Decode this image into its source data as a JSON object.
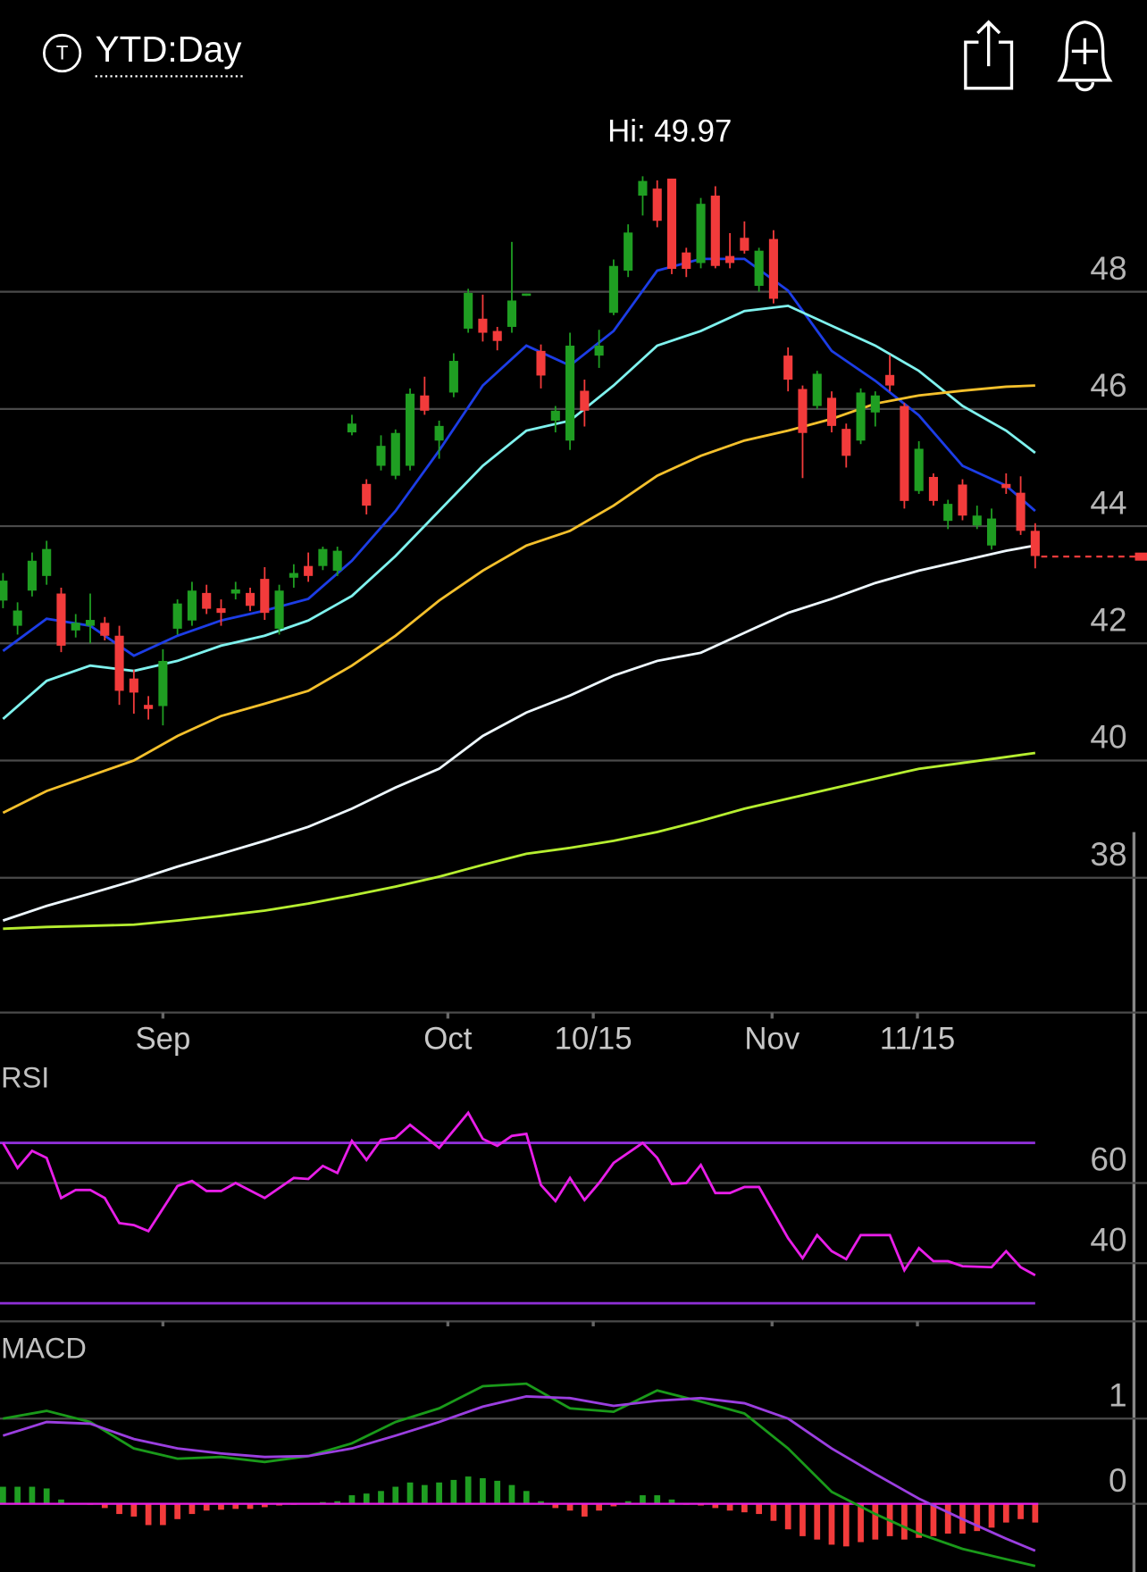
{
  "header": {
    "icon_letter": "T",
    "title": "YTD:Day"
  },
  "chart_data": [
    {
      "type": "candlestick",
      "annotation": "Hi: 49.97",
      "open": [
        42.73,
        42.3,
        42.9,
        43.15,
        42.85,
        42.22,
        42.3,
        42.35,
        42.13,
        41.4,
        40.95,
        40.93,
        42.25,
        42.39,
        42.86,
        42.6,
        42.85,
        42.86,
        43.1,
        42.25,
        43.12,
        43.32,
        43.32,
        43.24,
        45.6,
        44.72,
        45.03,
        44.86,
        45.03,
        46.23,
        45.46,
        46.28,
        47.37,
        47.54,
        47.33,
        47.4,
        47.93,
        46.99,
        45.8,
        45.46,
        46.31,
        46.91,
        47.64,
        48.36,
        49.64,
        49.76,
        49.93,
        48.67,
        48.49,
        49.64,
        48.61,
        48.92,
        48.1,
        48.9,
        46.91,
        46.34,
        46.05,
        46.19,
        45.66,
        45.46,
        45.94,
        46.58,
        46.05,
        44.6,
        44.84,
        44.09,
        44.71,
        44.01,
        43.67,
        44.72,
        44.57,
        43.92
      ],
      "high": [
        43.2,
        42.7,
        43.55,
        43.75,
        42.95,
        42.5,
        42.85,
        42.45,
        42.3,
        41.55,
        41.1,
        41.9,
        42.75,
        43.05,
        43.0,
        42.75,
        43.05,
        42.95,
        43.3,
        43.0,
        43.35,
        43.55,
        43.65,
        43.65,
        45.9,
        44.8,
        45.55,
        45.65,
        46.35,
        46.55,
        45.8,
        46.95,
        48.05,
        47.95,
        47.4,
        48.85,
        47.97,
        47.1,
        46.05,
        47.3,
        46.5,
        47.35,
        48.55,
        49.15,
        49.97,
        49.9,
        49.93,
        48.75,
        49.6,
        49.8,
        49.0,
        49.2,
        48.75,
        49.05,
        47.05,
        46.4,
        46.65,
        46.3,
        45.75,
        46.35,
        46.3,
        46.92,
        46.1,
        45.45,
        44.9,
        44.45,
        44.8,
        44.35,
        44.3,
        44.9,
        44.85,
        44.05
      ],
      "low": [
        42.6,
        42.15,
        42.8,
        43.0,
        41.85,
        42.1,
        42.0,
        42.05,
        40.95,
        40.8,
        40.7,
        40.6,
        42.15,
        42.3,
        42.5,
        42.3,
        42.75,
        42.55,
        42.4,
        42.15,
        42.95,
        43.05,
        43.25,
        43.15,
        45.55,
        44.2,
        44.95,
        44.8,
        44.95,
        45.9,
        45.15,
        46.2,
        47.3,
        47.15,
        47.0,
        47.3,
        47.93,
        46.35,
        45.6,
        45.3,
        45.7,
        46.7,
        47.6,
        48.25,
        49.3,
        49.1,
        48.3,
        48.25,
        48.4,
        48.4,
        48.4,
        48.65,
        48.0,
        47.8,
        46.3,
        44.82,
        46.0,
        45.6,
        45.0,
        45.4,
        45.7,
        46.3,
        44.3,
        44.55,
        44.35,
        43.95,
        44.1,
        43.95,
        43.6,
        44.55,
        43.85,
        43.28
      ],
      "close": [
        43.07,
        42.56,
        43.41,
        43.61,
        41.96,
        42.35,
        42.4,
        42.13,
        41.19,
        41.16,
        40.88,
        41.7,
        42.68,
        42.9,
        42.59,
        42.52,
        42.92,
        42.64,
        42.52,
        42.9,
        43.2,
        43.15,
        43.61,
        43.58,
        45.75,
        44.35,
        45.37,
        45.59,
        46.26,
        45.97,
        45.71,
        46.82,
        47.98,
        47.3,
        47.16,
        47.85,
        47.97,
        46.57,
        45.97,
        47.08,
        45.97,
        47.08,
        48.44,
        49.01,
        49.89,
        49.21,
        48.39,
        48.39,
        49.5,
        48.44,
        48.49,
        48.7,
        48.7,
        47.88,
        46.5,
        45.59,
        46.6,
        45.71,
        45.2,
        46.28,
        46.23,
        46.4,
        44.43,
        45.32,
        44.43,
        44.38,
        44.18,
        44.18,
        44.13,
        44.65,
        43.92,
        43.49
      ],
      "up_color": "#1f9e22",
      "down_color": "#f23b3b",
      "overlays": [
        {
          "color": "#1c3de6",
          "x": [
            0,
            3,
            6,
            9,
            12,
            15,
            18,
            21,
            24,
            27,
            30,
            33,
            36,
            39,
            42,
            45,
            48,
            51,
            54,
            57,
            60,
            63,
            66,
            69,
            71
          ],
          "values": [
            41.87,
            42.42,
            42.3,
            41.79,
            42.13,
            42.39,
            42.56,
            42.76,
            43.41,
            44.26,
            45.29,
            46.4,
            47.08,
            46.74,
            47.33,
            48.36,
            48.56,
            48.56,
            48.02,
            46.99,
            46.48,
            45.89,
            45.03,
            44.69,
            44.26
          ]
        },
        {
          "color": "#7ff2ee",
          "x": [
            0,
            3,
            6,
            9,
            12,
            15,
            18,
            21,
            24,
            27,
            30,
            33,
            36,
            39,
            42,
            45,
            48,
            51,
            54,
            57,
            60,
            63,
            66,
            69,
            71
          ],
          "values": [
            40.71,
            41.36,
            41.62,
            41.53,
            41.7,
            41.96,
            42.13,
            42.39,
            42.81,
            43.49,
            44.26,
            45.03,
            45.63,
            45.8,
            46.4,
            47.08,
            47.33,
            47.67,
            47.76,
            47.42,
            47.08,
            46.65,
            46.05,
            45.63,
            45.25
          ]
        },
        {
          "color": "#f4c02c",
          "x": [
            0,
            3,
            6,
            9,
            12,
            15,
            18,
            21,
            24,
            27,
            30,
            33,
            36,
            39,
            42,
            45,
            48,
            51,
            54,
            57,
            60,
            63,
            66,
            69,
            71
          ],
          "values": [
            39.11,
            39.48,
            39.74,
            40.0,
            40.42,
            40.76,
            40.97,
            41.19,
            41.62,
            42.13,
            42.73,
            43.24,
            43.67,
            43.92,
            44.35,
            44.86,
            45.2,
            45.46,
            45.63,
            45.83,
            46.09,
            46.23,
            46.31,
            46.38,
            46.4
          ]
        },
        {
          "color": "#eef8ff",
          "x": [
            0,
            3,
            6,
            9,
            12,
            15,
            18,
            21,
            24,
            27,
            30,
            33,
            36,
            39,
            42,
            45,
            48,
            51,
            54,
            57,
            60,
            63,
            66,
            69,
            71
          ],
          "values": [
            37.27,
            37.52,
            37.73,
            37.95,
            38.19,
            38.41,
            38.63,
            38.87,
            39.18,
            39.54,
            39.86,
            40.42,
            40.82,
            41.11,
            41.45,
            41.7,
            41.84,
            42.18,
            42.52,
            42.76,
            43.03,
            43.24,
            43.41,
            43.58,
            43.67
          ]
        },
        {
          "color": "#b6ee30",
          "x": [
            0,
            3,
            6,
            9,
            12,
            15,
            18,
            21,
            24,
            27,
            30,
            33,
            36,
            39,
            42,
            45,
            48,
            51,
            54,
            57,
            60,
            63,
            66,
            69,
            71
          ],
          "values": [
            37.13,
            37.16,
            37.18,
            37.2,
            37.27,
            37.35,
            37.44,
            37.56,
            37.7,
            37.85,
            38.02,
            38.22,
            38.41,
            38.51,
            38.63,
            38.78,
            38.97,
            39.18,
            39.35,
            39.52,
            39.69,
            39.86,
            39.96,
            40.06,
            40.13
          ]
        }
      ],
      "last_price": 43.48,
      "xlim": [
        -0.207,
        78.69
      ],
      "xticks": [
        {
          "value": 11,
          "label": "Sep"
        },
        {
          "value": 30.6,
          "label": "Oct"
        },
        {
          "value": 40.6,
          "label": "10/15"
        },
        {
          "value": 52.9,
          "label": "Nov"
        },
        {
          "value": 62.9,
          "label": "11/15"
        }
      ],
      "ylim": [
        35.7,
        50.24
      ],
      "yticks": [
        38,
        40,
        42,
        44,
        46,
        48
      ],
      "grid": true
    },
    {
      "type": "line",
      "title": "RSI",
      "color": "#e81ee8",
      "x": [
        0,
        1,
        2,
        3,
        4,
        5,
        6,
        7,
        8,
        9,
        10,
        12,
        13,
        14,
        15,
        16,
        18,
        20,
        21,
        22,
        23,
        24,
        25,
        26,
        27,
        28,
        30,
        32,
        33,
        34,
        35,
        36,
        37,
        38,
        39,
        40,
        41,
        42,
        44,
        45,
        46,
        47,
        48,
        49,
        50,
        51,
        52,
        54,
        55,
        56,
        57,
        58,
        59,
        61,
        62,
        63,
        64,
        65,
        66,
        68,
        69,
        70,
        71
      ],
      "values": [
        70,
        63.75,
        68,
        66.25,
        56.25,
        58.25,
        58.25,
        56.25,
        50,
        49.5,
        48,
        59.25,
        60.5,
        58,
        58,
        60,
        56.25,
        61.25,
        61,
        64.25,
        62.5,
        70.5,
        65.75,
        70.75,
        71.25,
        74.5,
        68.75,
        77.5,
        71,
        69.25,
        71.75,
        72.25,
        59.5,
        55.5,
        61.25,
        55.75,
        60,
        65,
        70,
        66.25,
        59.75,
        60,
        64.5,
        57.5,
        57.5,
        59,
        59,
        46.25,
        41.25,
        47,
        43,
        41,
        47,
        47,
        38.25,
        43.75,
        40.5,
        40.5,
        39.25,
        39,
        43,
        39,
        37
      ],
      "levels": [
        70,
        30
      ],
      "level_color": "#8e30d6",
      "xlim": [
        -0.207,
        78.69
      ],
      "ylim": [
        26,
        90
      ],
      "yticks": [
        40,
        60
      ],
      "grid": true
    },
    {
      "type": "macd",
      "title": "MACD",
      "x": [
        0,
        3,
        6,
        9,
        12,
        15,
        18,
        21,
        24,
        27,
        30,
        33,
        36,
        39,
        42,
        45,
        48,
        51,
        54,
        57,
        60,
        63,
        66,
        69,
        71
      ],
      "series": [
        {
          "color": "#1a9a1a",
          "values": [
            1.0,
            1.09,
            0.96,
            0.65,
            0.53,
            0.55,
            0.49,
            0.56,
            0.71,
            0.96,
            1.12,
            1.38,
            1.41,
            1.12,
            1.08,
            1.33,
            1.2,
            1.06,
            0.65,
            0.14,
            -0.12,
            -0.35,
            -0.53,
            -0.65,
            -0.73
          ]
        },
        {
          "color": "#9b3fe0",
          "values": [
            0.8,
            0.96,
            0.94,
            0.76,
            0.65,
            0.59,
            0.55,
            0.56,
            0.65,
            0.8,
            0.96,
            1.14,
            1.26,
            1.24,
            1.15,
            1.21,
            1.24,
            1.18,
            1.0,
            0.65,
            0.35,
            0.06,
            -0.18,
            -0.41,
            -0.55
          ]
        }
      ],
      "histogram": [
        0.2,
        0.2,
        0.2,
        0.18,
        0.05,
        0.01,
        -0.01,
        -0.05,
        -0.12,
        -0.15,
        -0.25,
        -0.25,
        -0.18,
        -0.12,
        -0.08,
        -0.07,
        -0.06,
        -0.06,
        -0.04,
        -0.02,
        -0.01,
        0.01,
        0.02,
        0.03,
        0.1,
        0.12,
        0.15,
        0.2,
        0.25,
        0.22,
        0.25,
        0.28,
        0.32,
        0.3,
        0.27,
        0.22,
        0.15,
        0.03,
        -0.05,
        -0.08,
        -0.15,
        -0.08,
        -0.03,
        0.03,
        0.1,
        0.1,
        0.05,
        -0.01,
        -0.02,
        -0.05,
        -0.08,
        -0.1,
        -0.12,
        -0.2,
        -0.3,
        -0.38,
        -0.42,
        -0.48,
        -0.5,
        -0.45,
        -0.42,
        -0.38,
        -0.42,
        -0.4,
        -0.38,
        -0.35,
        -0.35,
        -0.32,
        -0.28,
        -0.22,
        -0.18,
        -0.22
      ],
      "hist_up_color": "#1f9e22",
      "hist_down_color": "#f23b3b",
      "zero_line_color": "#e81ee8",
      "xlim": [
        -0.207,
        78.69
      ],
      "ylim": [
        -0.8,
        2.0
      ],
      "yticks": [
        0,
        1
      ],
      "grid": true
    }
  ]
}
